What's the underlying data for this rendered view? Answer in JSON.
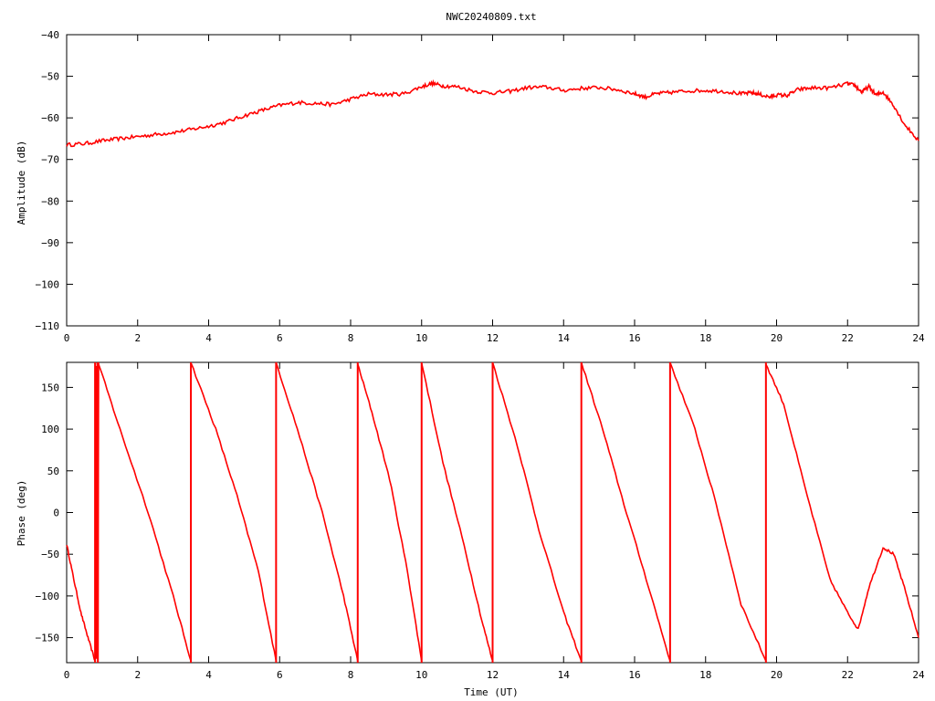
{
  "title": "NWC20240809.txt",
  "series_color": "#ff0000",
  "chart_data": [
    {
      "type": "line",
      "panel": "amplitude",
      "ylabel": "Amplitude (dB)",
      "xlabel": "",
      "xlim": [
        0,
        24
      ],
      "ylim": [
        -110,
        -40
      ],
      "xticks": [
        0,
        2,
        4,
        6,
        8,
        10,
        12,
        14,
        16,
        18,
        20,
        22,
        24
      ],
      "yticks": [
        -110,
        -100,
        -90,
        -80,
        -70,
        -60,
        -50,
        -40
      ],
      "grid": false,
      "x": [
        0,
        0.5,
        1,
        1.5,
        2,
        2.5,
        3,
        3.5,
        4,
        4.5,
        5,
        5.5,
        6,
        6.5,
        7,
        7.5,
        8,
        8.5,
        9,
        9.5,
        10,
        10.3,
        10.6,
        11,
        11.5,
        12,
        12.5,
        13,
        13.5,
        14,
        14.5,
        15,
        15.5,
        16,
        16.3,
        16.6,
        17,
        17.5,
        18,
        18.5,
        19,
        19.3,
        19.5,
        19.8,
        20,
        20.3,
        20.6,
        21,
        21.5,
        22,
        22.2,
        22.4,
        22.6,
        22.8,
        23,
        23.3,
        23.6,
        24
      ],
      "y": [
        -66.5,
        -66.2,
        -65.5,
        -65,
        -64.5,
        -64,
        -63.5,
        -62.8,
        -62,
        -61,
        -59.5,
        -58.2,
        -57,
        -56.3,
        -56.5,
        -56.8,
        -55.5,
        -54.3,
        -54.4,
        -54.2,
        -52.5,
        -51.7,
        -52.3,
        -52.5,
        -53.6,
        -54,
        -53.6,
        -52.7,
        -52.6,
        -53.4,
        -52.9,
        -52.7,
        -53.2,
        -54.2,
        -55,
        -54.2,
        -53.9,
        -53.5,
        -53.4,
        -53.6,
        -54.2,
        -54,
        -54.3,
        -55,
        -54.5,
        -54.6,
        -53.2,
        -52.8,
        -52.8,
        -51.8,
        -52.2,
        -53.8,
        -52.5,
        -54.5,
        -53.8,
        -57,
        -61.5,
        -65.5
      ]
    },
    {
      "type": "line",
      "panel": "phase",
      "ylabel": "Phase (deg)",
      "xlabel": "Time (UT)",
      "xlim": [
        0,
        24
      ],
      "ylim": [
        -180,
        180
      ],
      "xticks": [
        0,
        2,
        4,
        6,
        8,
        10,
        12,
        14,
        16,
        18,
        20,
        22,
        24
      ],
      "yticks": [
        -150,
        -100,
        -50,
        0,
        50,
        100,
        150
      ],
      "grid": false,
      "segments": [
        {
          "x": [
            0,
            0.2,
            0.4,
            0.6,
            0.8
          ],
          "y": [
            -38,
            -80,
            -120,
            -150,
            -178
          ]
        },
        {
          "x": [
            0.82,
            0.84,
            0.86,
            0.88,
            0.9
          ],
          "y": [
            175,
            -175,
            178,
            -178,
            180
          ]
        },
        {
          "x": [
            0.9,
            1.5,
            2.3,
            3.0,
            3.5
          ],
          "y": [
            178,
            100,
            0,
            -100,
            -178
          ]
        },
        {
          "x": [
            3.5,
            4.2,
            4.8,
            5.4,
            5.9
          ],
          "y": [
            180,
            100,
            20,
            -70,
            -178
          ]
        },
        {
          "x": [
            5.9,
            6.5,
            7.2,
            7.8,
            8.2
          ],
          "y": [
            180,
            100,
            0,
            -100,
            -178
          ]
        },
        {
          "x": [
            8.2,
            8.6,
            9.1,
            9.6,
            10.0
          ],
          "y": [
            178,
            120,
            40,
            -70,
            -178
          ]
        },
        {
          "x": [
            10.0,
            10.6,
            11.2,
            11.7,
            12.0
          ],
          "y": [
            180,
            60,
            -40,
            -130,
            -178
          ]
        },
        {
          "x": [
            12.0,
            12.7,
            13.3,
            14.0,
            14.5
          ],
          "y": [
            180,
            80,
            -20,
            -120,
            -178
          ]
        },
        {
          "x": [
            14.5,
            15.1,
            15.7,
            16.4,
            17.0
          ],
          "y": [
            180,
            100,
            10,
            -90,
            -178
          ]
        },
        {
          "x": [
            17.0,
            17.7,
            18.3,
            19.0,
            19.7
          ],
          "y": [
            180,
            100,
            10,
            -110,
            -178
          ]
        },
        {
          "x": [
            19.7,
            20.2,
            20.8,
            21.5,
            22.0,
            22.3,
            22.6,
            23.0,
            23.3,
            23.6,
            24.0
          ],
          "y": [
            178,
            130,
            30,
            -80,
            -120,
            -140,
            -90,
            -42,
            -50,
            -90,
            -150
          ]
        }
      ],
      "wrap_lines": [
        0.8,
        0.88,
        3.5,
        5.9,
        8.2,
        10.0,
        12.0,
        14.5,
        17.0,
        19.7
      ]
    }
  ]
}
